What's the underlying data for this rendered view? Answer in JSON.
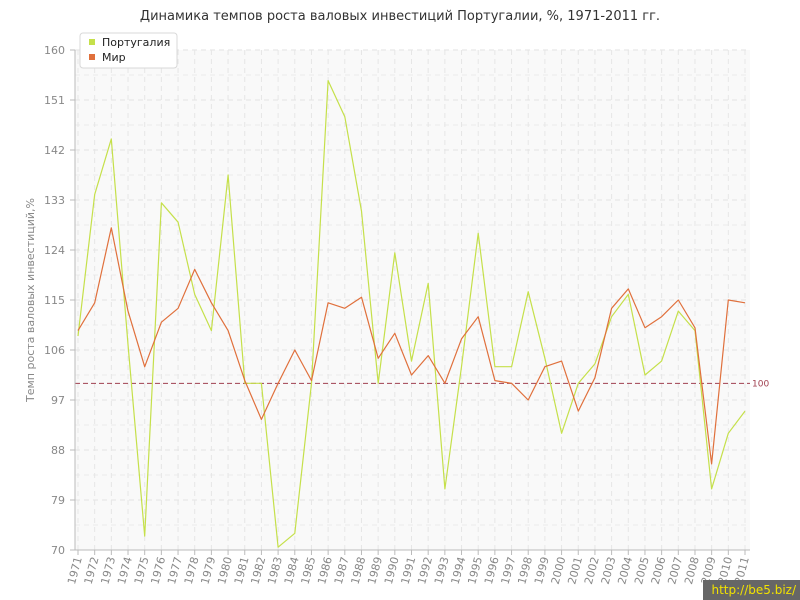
{
  "chart_data": {
    "type": "line",
    "title": "Динамика темпов роста валовых инвестиций Португалии, %, 1971-2011 гг.",
    "ylabel": "Темп роста валовых инвестиций,%",
    "xlabel": "",
    "ylim": [
      70,
      160
    ],
    "yticks": [
      70,
      79,
      88,
      97,
      106,
      115,
      124,
      133,
      142,
      151,
      160
    ],
    "grid": true,
    "legend_position": "top-left",
    "categories": [
      "1971",
      "1972",
      "1973",
      "1974",
      "1975",
      "1976",
      "1977",
      "1978",
      "1979",
      "1980",
      "1981",
      "1982",
      "1983",
      "1984",
      "1985",
      "1986",
      "1987",
      "1988",
      "1989",
      "1990",
      "1991",
      "1992",
      "1993",
      "1994",
      "1995",
      "1996",
      "1997",
      "1998",
      "1999",
      "2000",
      "2001",
      "2002",
      "2003",
      "2004",
      "2005",
      "2006",
      "2007",
      "2008",
      "2009",
      "2010",
      "2011"
    ],
    "series": [
      {
        "name": "Португалия",
        "color": "#c5e04a",
        "values": [
          108.5,
          134,
          144,
          107,
          72.5,
          132.5,
          129,
          116,
          109.5,
          137.5,
          100,
          100,
          70.5,
          73,
          100,
          154.5,
          148,
          131,
          100,
          123.5,
          104,
          118,
          81,
          103,
          127,
          103,
          103,
          116.5,
          104.5,
          91,
          100,
          103.5,
          112,
          116,
          101.5,
          104,
          113,
          109.5,
          81,
          91,
          95
        ]
      },
      {
        "name": "Мир",
        "color": "#e0703c",
        "values": [
          109.5,
          114.5,
          128,
          113,
          103,
          111,
          113.5,
          120.5,
          114.5,
          109.5,
          100.5,
          93.5,
          100,
          106,
          100.5,
          114.5,
          113.5,
          115.5,
          104.5,
          109,
          101.5,
          105,
          100,
          108,
          112,
          100.5,
          100,
          97,
          103,
          104,
          95,
          101,
          113.5,
          117,
          110,
          112,
          115,
          110,
          85.5,
          115,
          114.5
        ]
      }
    ],
    "reference_line": {
      "value": 100,
      "label": "100",
      "color": "#a04050"
    }
  },
  "watermark": "http://be5.biz/"
}
